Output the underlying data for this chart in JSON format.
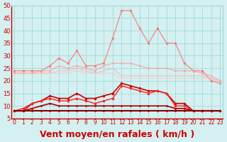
{
  "x": [
    0,
    1,
    2,
    3,
    4,
    5,
    6,
    7,
    8,
    9,
    10,
    11,
    12,
    13,
    14,
    15,
    16,
    17,
    18,
    19,
    20,
    21,
    22,
    23
  ],
  "series": [
    {
      "name": "rafales_max",
      "color": "#ff6666",
      "alpha": 0.7,
      "linewidth": 1.0,
      "markersize": 2.5,
      "values": [
        24,
        24,
        24,
        24,
        26,
        29,
        27,
        32,
        26,
        26,
        27,
        37,
        48,
        48,
        41,
        35,
        41,
        35,
        35,
        27,
        24,
        24,
        20,
        19
      ]
    },
    {
      "name": "vent_moyen_high",
      "color": "#ff9999",
      "alpha": 0.7,
      "linewidth": 1.0,
      "markersize": 2.0,
      "values": [
        23,
        23,
        23,
        24,
        24,
        26,
        25,
        26,
        25,
        24,
        26,
        27,
        27,
        27,
        26,
        25,
        25,
        25,
        24,
        24,
        24,
        23,
        22,
        20
      ]
    },
    {
      "name": "vent_moyen_mid",
      "color": "#ffaaaa",
      "alpha": 0.6,
      "linewidth": 1.0,
      "markersize": 0,
      "values": [
        23,
        23,
        23,
        23,
        23,
        24,
        24,
        25,
        24,
        23,
        24,
        25,
        22,
        22,
        22,
        22,
        22,
        22,
        22,
        22,
        22,
        22,
        21,
        20
      ]
    },
    {
      "name": "vent_moyen_low",
      "color": "#ffbbbb",
      "alpha": 0.5,
      "linewidth": 1.0,
      "markersize": 0,
      "values": [
        23,
        23,
        23,
        23,
        23,
        23,
        23,
        24,
        23,
        23,
        23,
        23,
        21,
        21,
        21,
        21,
        21,
        21,
        21,
        21,
        21,
        21,
        21,
        19
      ]
    },
    {
      "name": "vent_inst1",
      "color": "#cc0000",
      "alpha": 1.0,
      "linewidth": 1.2,
      "markersize": 2.5,
      "values": [
        8,
        8,
        11,
        12,
        14,
        13,
        13,
        15,
        13,
        13,
        14,
        15,
        19,
        18,
        17,
        16,
        16,
        15,
        11,
        11,
        8,
        8,
        8,
        8
      ]
    },
    {
      "name": "vent_inst2",
      "color": "#ff2222",
      "alpha": 1.0,
      "linewidth": 1.0,
      "markersize": 2.5,
      "values": [
        8,
        9,
        11,
        12,
        13,
        12,
        12,
        13,
        12,
        11,
        12,
        13,
        18,
        17,
        16,
        15,
        16,
        15,
        10,
        10,
        8,
        8,
        8,
        8
      ]
    },
    {
      "name": "vent_base1",
      "color": "#aa0000",
      "alpha": 1.0,
      "linewidth": 1.2,
      "markersize": 2.0,
      "values": [
        8,
        8,
        9,
        10,
        11,
        10,
        10,
        10,
        10,
        10,
        10,
        10,
        10,
        10,
        10,
        10,
        10,
        10,
        9,
        9,
        8,
        8,
        8,
        8
      ]
    },
    {
      "name": "vent_base2",
      "color": "#880000",
      "alpha": 1.0,
      "linewidth": 1.5,
      "markersize": 2.0,
      "values": [
        8,
        8,
        8,
        8,
        8,
        8,
        8,
        8,
        8,
        8,
        8,
        8,
        8,
        8,
        8,
        8,
        8,
        8,
        8,
        8,
        8,
        8,
        8,
        8
      ]
    }
  ],
  "xlabel": "Vent moyen/en rafales ( km/h )",
  "ylabel": "",
  "ylim": [
    5,
    50
  ],
  "yticks": [
    5,
    10,
    15,
    20,
    25,
    30,
    35,
    40,
    45,
    50
  ],
  "xlim": [
    0,
    23
  ],
  "xticks": [
    0,
    1,
    2,
    3,
    4,
    5,
    6,
    7,
    8,
    9,
    10,
    11,
    12,
    13,
    14,
    15,
    16,
    17,
    18,
    19,
    20,
    21,
    22,
    23
  ],
  "bg_color": "#d4f0f0",
  "grid_color": "#aadddd",
  "xlabel_color": "#cc0000",
  "xlabel_fontsize": 9
}
